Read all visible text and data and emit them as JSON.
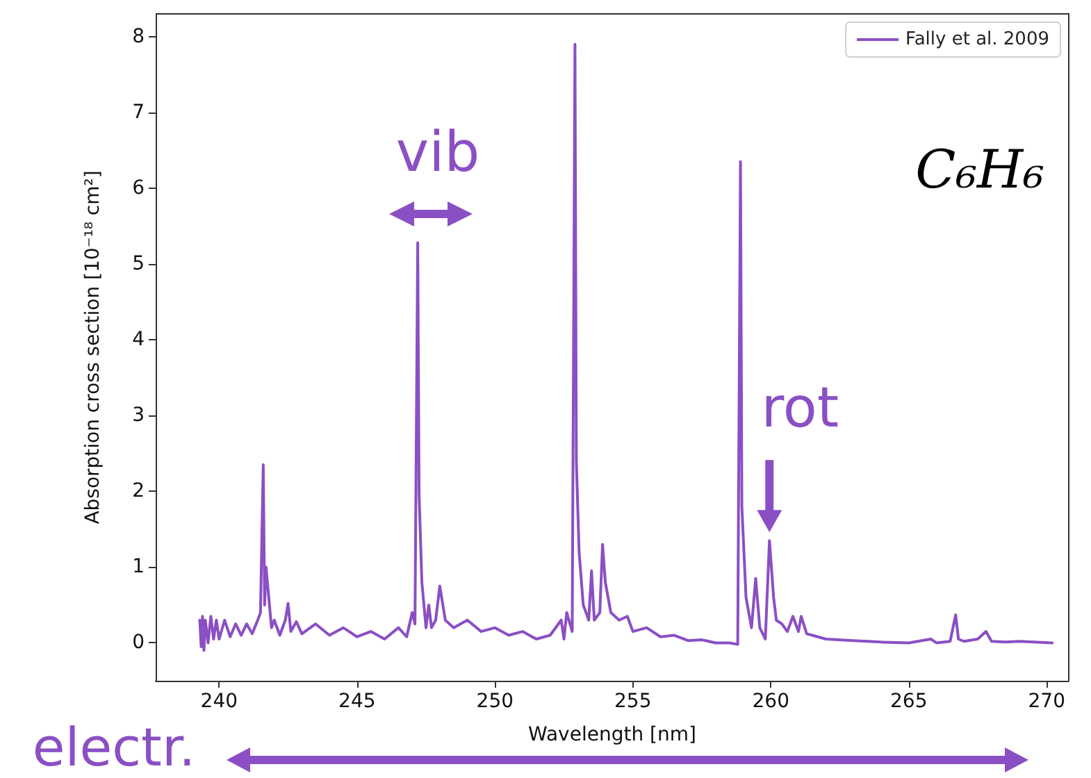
{
  "chart_data": {
    "type": "line",
    "xlabel": "Wavelength [nm]",
    "ylabel": "Absorption cross section [10⁻¹⁸ cm²]",
    "xlim": [
      237.7,
      270.8
    ],
    "xticks": [
      240,
      245,
      250,
      255,
      260,
      265,
      270
    ],
    "ylim": [
      -0.5,
      8.3
    ],
    "yticks": [
      0,
      1,
      2,
      3,
      4,
      5,
      6,
      7,
      8
    ],
    "grid": false,
    "legend": "top right",
    "marker": "none",
    "line_style": "solid",
    "annotations": [
      "vib",
      {
        "text": "rot",
        "x": 259.95,
        "y": 1.35
      },
      "C₆H₆",
      "electr."
    ],
    "series": [
      {
        "name": "Fally et al. 2009",
        "color": "#8b4fc4",
        "x": [
          239.3,
          239.35,
          239.4,
          239.45,
          239.5,
          239.6,
          239.7,
          239.8,
          239.9,
          240.0,
          240.2,
          240.4,
          240.6,
          240.8,
          241.0,
          241.2,
          241.4,
          241.5,
          241.6,
          241.65,
          241.7,
          241.8,
          241.9,
          242.0,
          242.2,
          242.4,
          242.5,
          242.6,
          242.8,
          243.0,
          243.5,
          244.0,
          244.5,
          245.0,
          245.5,
          246.0,
          246.5,
          246.8,
          247.0,
          247.1,
          247.2,
          247.25,
          247.35,
          247.5,
          247.6,
          247.7,
          247.85,
          248.0,
          248.2,
          248.5,
          249.0,
          249.5,
          250.0,
          250.5,
          251.0,
          251.5,
          252.0,
          252.4,
          252.5,
          252.6,
          252.8,
          252.9,
          252.95,
          253.05,
          253.2,
          253.4,
          253.5,
          253.6,
          253.8,
          253.9,
          254.0,
          254.2,
          254.5,
          254.8,
          255.0,
          255.5,
          256.0,
          256.5,
          257.0,
          257.5,
          258.0,
          258.5,
          258.8,
          258.9,
          258.95,
          259.1,
          259.3,
          259.45,
          259.6,
          259.8,
          259.95,
          260.1,
          260.2,
          260.4,
          260.6,
          260.8,
          261.0,
          261.1,
          261.3,
          261.5,
          262.0,
          263.0,
          264.0,
          265.0,
          265.8,
          266.0,
          266.5,
          266.7,
          266.8,
          267.0,
          267.5,
          267.8,
          268.0,
          268.5,
          269.0,
          270.2
        ],
        "values": [
          0.3,
          -0.05,
          0.35,
          -0.1,
          0.3,
          0.0,
          0.35,
          0.05,
          0.3,
          0.05,
          0.3,
          0.08,
          0.25,
          0.1,
          0.25,
          0.12,
          0.3,
          0.4,
          2.35,
          0.5,
          1.0,
          0.6,
          0.2,
          0.3,
          0.1,
          0.3,
          0.52,
          0.15,
          0.28,
          0.12,
          0.25,
          0.1,
          0.2,
          0.08,
          0.15,
          0.05,
          0.2,
          0.08,
          0.4,
          0.25,
          5.28,
          1.95,
          0.8,
          0.2,
          0.5,
          0.2,
          0.3,
          0.75,
          0.3,
          0.2,
          0.3,
          0.15,
          0.2,
          0.1,
          0.15,
          0.05,
          0.1,
          0.3,
          0.05,
          0.4,
          0.15,
          7.9,
          2.4,
          1.2,
          0.5,
          0.3,
          0.95,
          0.3,
          0.4,
          1.3,
          0.8,
          0.4,
          0.3,
          0.35,
          0.15,
          0.2,
          0.08,
          0.1,
          0.03,
          0.04,
          0.0,
          0.0,
          -0.02,
          6.35,
          1.8,
          0.6,
          0.2,
          0.85,
          0.2,
          0.05,
          1.35,
          0.6,
          0.3,
          0.25,
          0.15,
          0.35,
          0.15,
          0.35,
          0.12,
          0.1,
          0.05,
          0.03,
          0.01,
          0.0,
          0.05,
          0.0,
          0.02,
          0.37,
          0.05,
          0.02,
          0.05,
          0.15,
          0.02,
          0.01,
          0.02,
          0.0
        ]
      }
    ]
  }
}
